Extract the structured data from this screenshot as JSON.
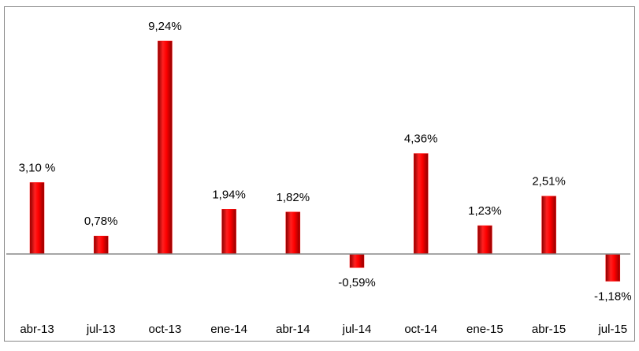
{
  "chart_data": {
    "type": "bar",
    "categories": [
      "abr-13",
      "jul-13",
      "oct-13",
      "ene-14",
      "abr-14",
      "jul-14",
      "oct-14",
      "ene-15",
      "abr-15",
      "jul-15"
    ],
    "values": [
      3.1,
      0.78,
      9.24,
      1.94,
      1.82,
      -0.59,
      4.36,
      1.23,
      2.51,
      -1.18
    ],
    "value_labels": [
      "3,10 %",
      "0,78%",
      "9,24%",
      "1,94%",
      "1,82%",
      "-0,59%",
      "4,36%",
      "1,23%",
      "2,51%",
      "-1,18%"
    ],
    "color": "#ff0000"
  }
}
